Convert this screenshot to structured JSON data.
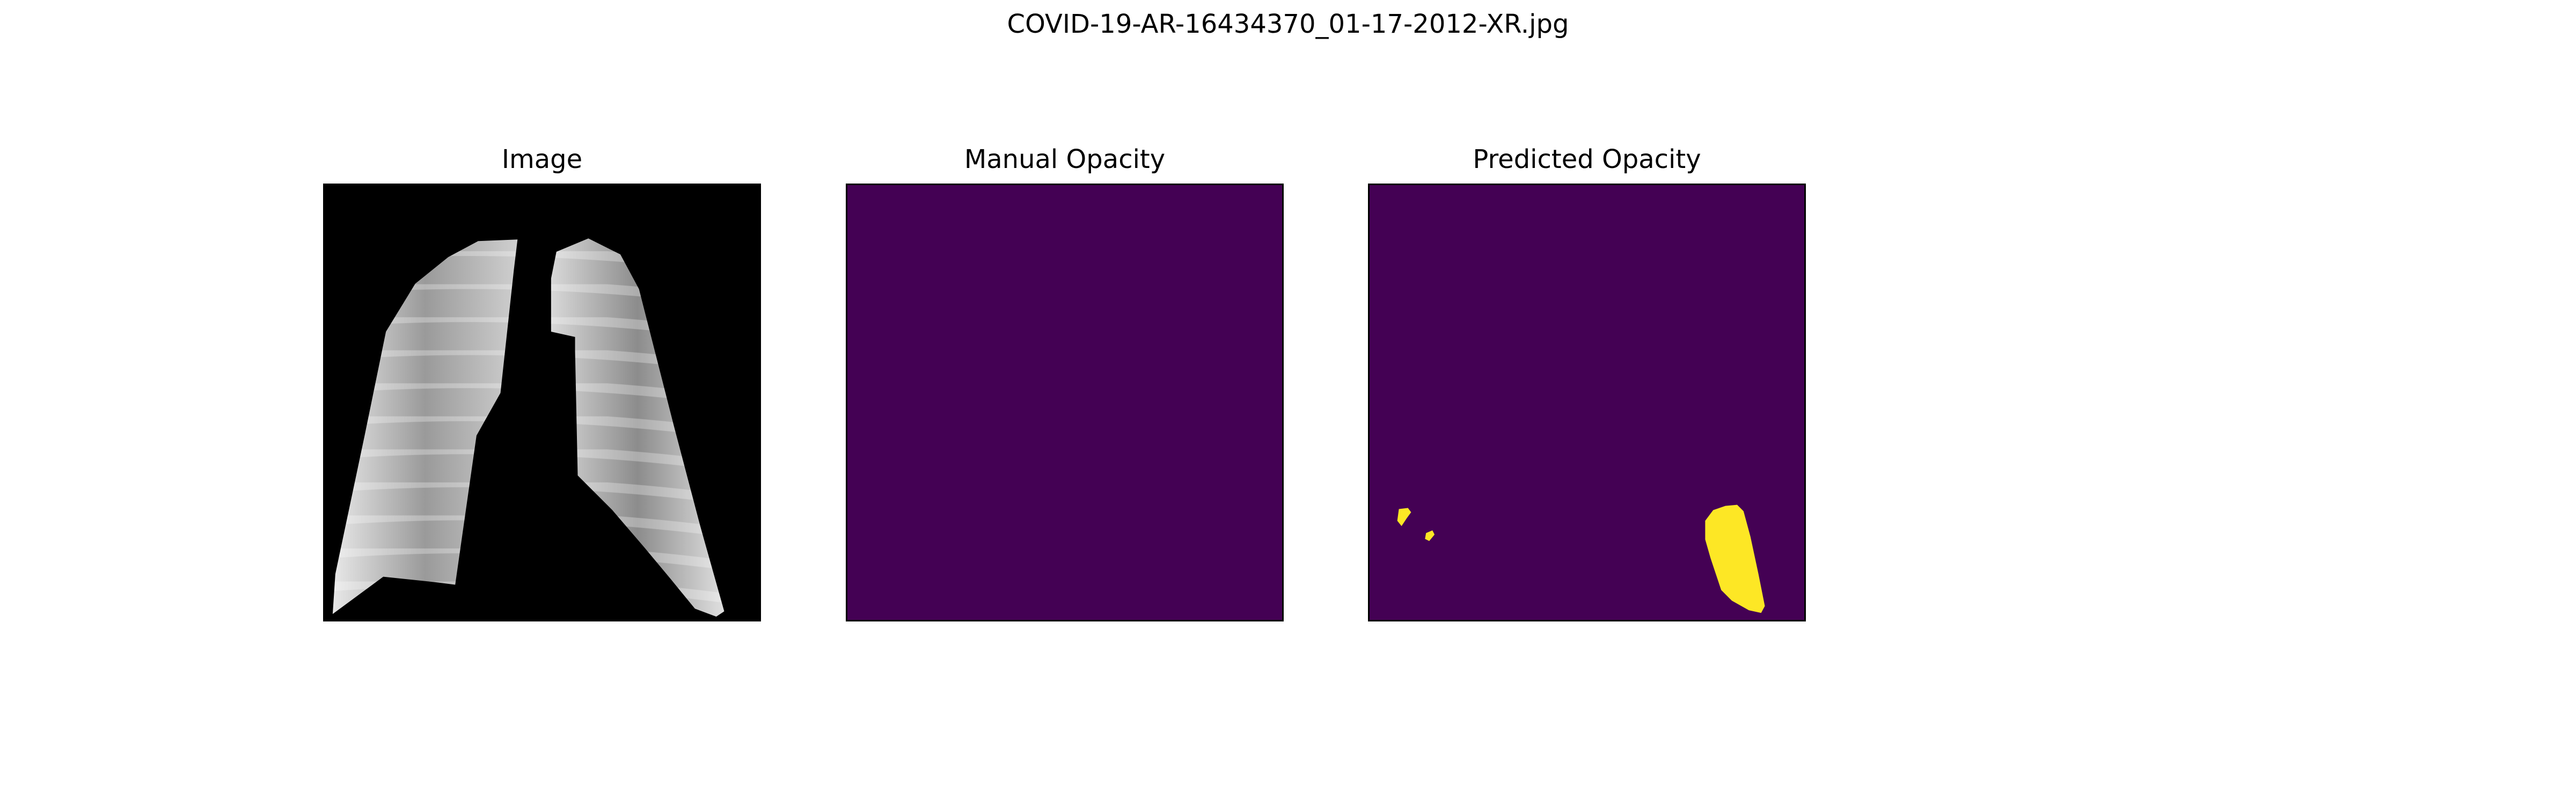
{
  "figure": {
    "suptitle": "COVID-19-AR-16434370_01-17-2012-XR.jpg"
  },
  "panels": [
    {
      "title": "Image"
    },
    {
      "title": "Manual Opacity"
    },
    {
      "title": "Predicted Opacity"
    }
  ],
  "colors": {
    "mask_background": "#440154",
    "mask_foreground": "#fde725",
    "image_background": "#000000"
  }
}
